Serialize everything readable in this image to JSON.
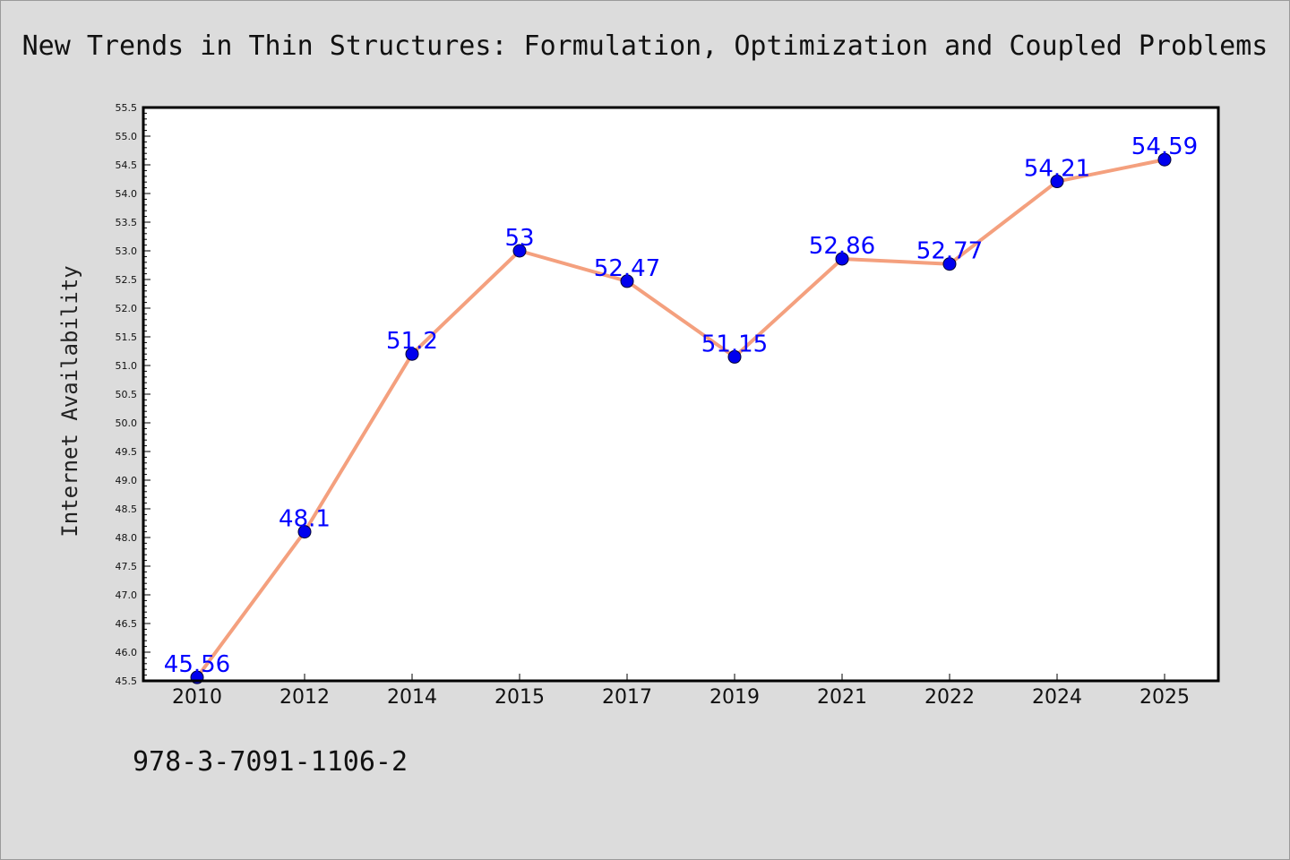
{
  "chart_data": {
    "type": "line",
    "title": "New Trends in Thin Structures: Formulation, Optimization and Coupled Problems",
    "xlabel": "",
    "ylabel": "Internet Availability",
    "categories": [
      "2010",
      "2012",
      "2014",
      "2015",
      "2017",
      "2019",
      "2021",
      "2022",
      "2024",
      "2025"
    ],
    "series": [
      {
        "values": [
          45.56,
          48.1,
          51.2,
          53,
          52.47,
          51.15,
          52.86,
          52.77,
          54.21,
          54.59
        ],
        "data_labels": [
          "45.56",
          "48.1",
          "51.2",
          "53",
          "52.47",
          "51.15",
          "52.86",
          "52.77",
          "54.21",
          "54.59"
        ]
      }
    ],
    "ylim": [
      45.5,
      55.5
    ],
    "ytick_step": 0.5,
    "grid": false,
    "line_color": "#f4a07e",
    "marker_color": "#0000ee",
    "label_color": "#0000ff"
  },
  "footer": {
    "isbn": "978-3-7091-1106-2"
  }
}
